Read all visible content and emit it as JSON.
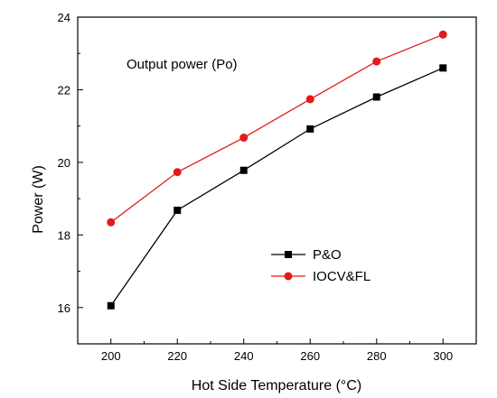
{
  "chart_data": {
    "type": "line",
    "title": "",
    "annotation": "Output power (Po)",
    "xlabel": "Hot Side Temperature (°C)",
    "ylabel": "Power (W)",
    "xlim": [
      190,
      310
    ],
    "ylim": [
      15,
      24
    ],
    "xticks": [
      200,
      220,
      240,
      260,
      280,
      300
    ],
    "yticks": [
      16,
      18,
      20,
      22,
      24
    ],
    "x": [
      200,
      220,
      240,
      260,
      280,
      300
    ],
    "grid": false,
    "legend_position": "lower-right",
    "series": [
      {
        "name": "P&O",
        "color": "#000000",
        "marker": "square",
        "values": [
          16.05,
          18.68,
          19.78,
          20.92,
          21.8,
          22.6
        ]
      },
      {
        "name": "IOCV&FL",
        "color": "#e31a1c",
        "marker": "circle",
        "values": [
          18.35,
          19.73,
          20.68,
          21.74,
          22.78,
          23.52
        ]
      }
    ]
  }
}
